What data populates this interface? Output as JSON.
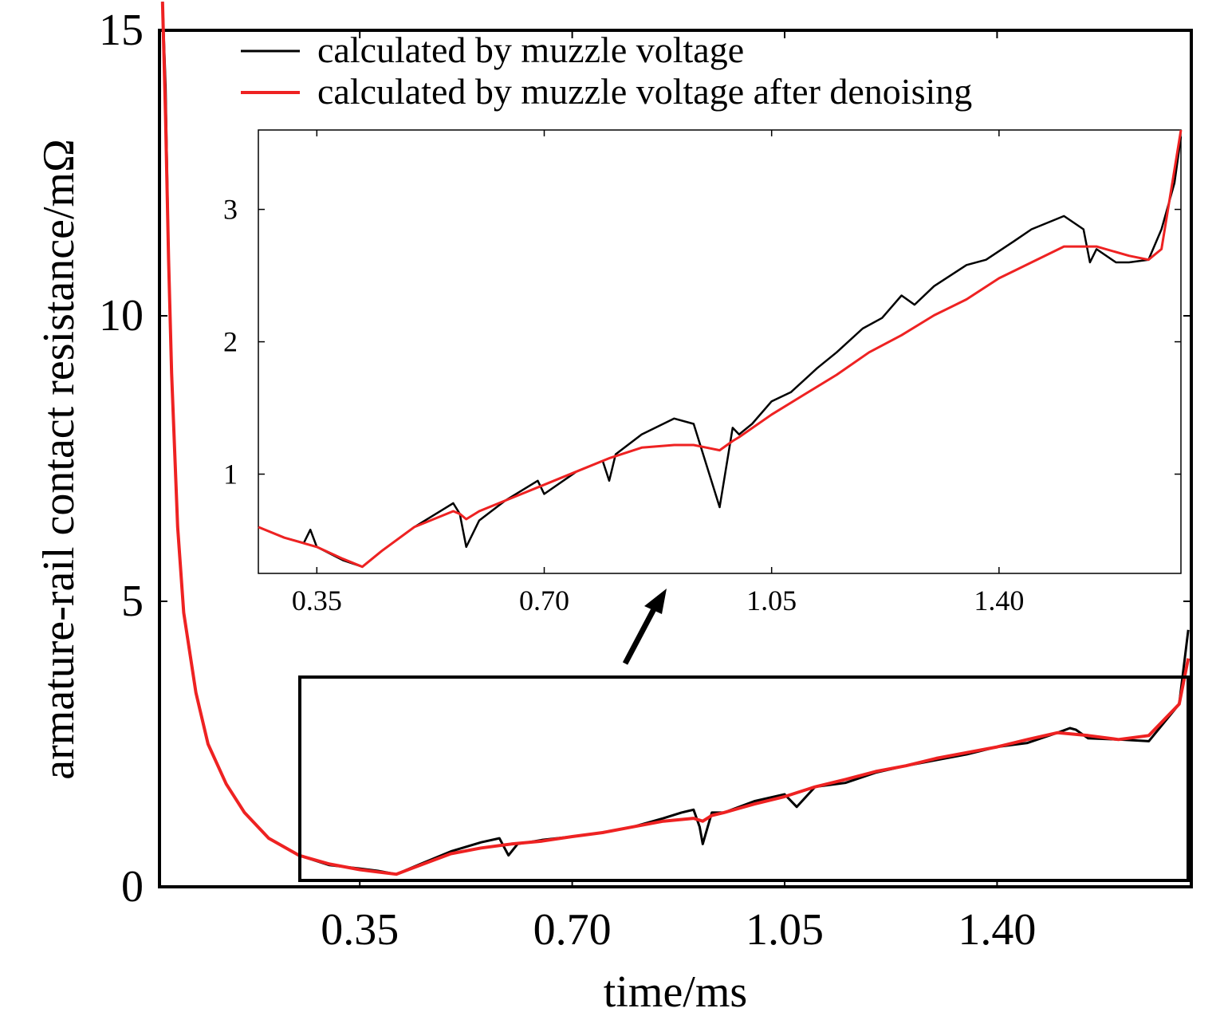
{
  "chart_data": [
    {
      "type": "line",
      "role": "main",
      "title": "",
      "xlabel": "time/ms",
      "ylabel": "armature-rail contact resistance/mΩ",
      "xlim": [
        0.02,
        1.72
      ],
      "ylim": [
        0,
        15
      ],
      "xticks": [
        "0.35",
        "0.70",
        "1.05",
        "1.40"
      ],
      "xtick_values": [
        0.35,
        0.7,
        1.05,
        1.4
      ],
      "yticks": [
        "0",
        "5",
        "10",
        "15"
      ],
      "ytick_values": [
        0,
        5,
        10,
        15
      ],
      "legend_position": "top",
      "series": [
        {
          "name": "calculated by muzzle voltage",
          "color": "#000000",
          "x": [
            0.025,
            0.03,
            0.035,
            0.04,
            0.05,
            0.06,
            0.08,
            0.1,
            0.13,
            0.16,
            0.2,
            0.25,
            0.3,
            0.35,
            0.38,
            0.41,
            0.45,
            0.5,
            0.55,
            0.58,
            0.595,
            0.61,
            0.65,
            0.7,
            0.75,
            0.8,
            0.85,
            0.88,
            0.9,
            0.91,
            0.915,
            0.93,
            0.95,
            1.0,
            1.05,
            1.07,
            1.1,
            1.15,
            1.2,
            1.25,
            1.3,
            1.35,
            1.4,
            1.45,
            1.5,
            1.52,
            1.53,
            1.55,
            1.6,
            1.65,
            1.7,
            1.715
          ],
          "y": [
            15.5,
            14,
            11,
            9,
            6.3,
            4.8,
            3.4,
            2.5,
            1.8,
            1.3,
            0.85,
            0.55,
            0.38,
            0.32,
            0.28,
            0.22,
            0.4,
            0.62,
            0.78,
            0.85,
            0.55,
            0.75,
            0.82,
            0.88,
            0.95,
            1.05,
            1.2,
            1.3,
            1.35,
            1.05,
            0.75,
            1.3,
            1.3,
            1.5,
            1.62,
            1.4,
            1.75,
            1.82,
            2.0,
            2.12,
            2.22,
            2.32,
            2.45,
            2.52,
            2.7,
            2.78,
            2.75,
            2.6,
            2.58,
            2.55,
            3.2,
            4.5
          ]
        },
        {
          "name": "calculated by muzzle voltage after denoising",
          "color": "#ee2222",
          "x": [
            0.025,
            0.03,
            0.035,
            0.04,
            0.05,
            0.06,
            0.08,
            0.1,
            0.13,
            0.16,
            0.2,
            0.25,
            0.3,
            0.35,
            0.38,
            0.41,
            0.45,
            0.5,
            0.55,
            0.6,
            0.65,
            0.7,
            0.75,
            0.8,
            0.85,
            0.9,
            0.915,
            0.93,
            0.95,
            1.0,
            1.05,
            1.1,
            1.15,
            1.2,
            1.25,
            1.3,
            1.35,
            1.4,
            1.45,
            1.5,
            1.55,
            1.6,
            1.65,
            1.7,
            1.715
          ],
          "y": [
            15.5,
            13.5,
            11,
            9,
            6.3,
            4.8,
            3.4,
            2.5,
            1.8,
            1.3,
            0.85,
            0.55,
            0.4,
            0.3,
            0.26,
            0.22,
            0.38,
            0.58,
            0.68,
            0.75,
            0.8,
            0.88,
            0.95,
            1.05,
            1.15,
            1.2,
            1.15,
            1.25,
            1.3,
            1.45,
            1.58,
            1.75,
            1.88,
            2.02,
            2.12,
            2.25,
            2.35,
            2.45,
            2.58,
            2.7,
            2.65,
            2.58,
            2.65,
            3.2,
            4.0
          ]
        }
      ]
    },
    {
      "type": "line",
      "role": "inset (zoom of boxed region)",
      "xlim": [
        0.26,
        1.68
      ],
      "ylim": [
        0.25,
        3.6
      ],
      "xticks": [
        "0.35",
        "0.70",
        "1.05",
        "1.40"
      ],
      "xtick_values": [
        0.35,
        0.7,
        1.05,
        1.4
      ],
      "yticks": [
        "1",
        "2",
        "3"
      ],
      "ytick_values": [
        1,
        2,
        3
      ],
      "series": [
        {
          "name": "calculated by muzzle voltage",
          "color": "#000000",
          "x": [
            0.26,
            0.3,
            0.33,
            0.34,
            0.35,
            0.39,
            0.42,
            0.45,
            0.5,
            0.56,
            0.57,
            0.58,
            0.6,
            0.64,
            0.69,
            0.7,
            0.75,
            0.79,
            0.8,
            0.81,
            0.85,
            0.9,
            0.93,
            0.97,
            0.99,
            1.0,
            1.02,
            1.05,
            1.08,
            1.12,
            1.15,
            1.19,
            1.22,
            1.25,
            1.27,
            1.3,
            1.35,
            1.38,
            1.42,
            1.45,
            1.5,
            1.53,
            1.54,
            1.55,
            1.58,
            1.6,
            1.63,
            1.65,
            1.67,
            1.68
          ],
          "y": [
            0.6,
            0.52,
            0.48,
            0.58,
            0.45,
            0.35,
            0.3,
            0.42,
            0.6,
            0.78,
            0.7,
            0.45,
            0.65,
            0.8,
            0.95,
            0.85,
            1.02,
            1.1,
            0.95,
            1.15,
            1.3,
            1.42,
            1.38,
            0.75,
            1.35,
            1.3,
            1.38,
            1.55,
            1.62,
            1.8,
            1.92,
            2.1,
            2.18,
            2.35,
            2.28,
            2.42,
            2.58,
            2.62,
            2.75,
            2.85,
            2.95,
            2.85,
            2.6,
            2.7,
            2.6,
            2.6,
            2.62,
            2.85,
            3.2,
            3.55
          ]
        },
        {
          "name": "calculated by muzzle voltage after denoising",
          "color": "#ee2222",
          "x": [
            0.26,
            0.3,
            0.35,
            0.39,
            0.42,
            0.45,
            0.5,
            0.56,
            0.57,
            0.58,
            0.6,
            0.65,
            0.7,
            0.75,
            0.8,
            0.85,
            0.9,
            0.93,
            0.95,
            0.97,
            0.99,
            1.0,
            1.05,
            1.1,
            1.15,
            1.2,
            1.25,
            1.3,
            1.35,
            1.4,
            1.45,
            1.5,
            1.55,
            1.6,
            1.63,
            1.65,
            1.68
          ],
          "y": [
            0.6,
            0.52,
            0.45,
            0.36,
            0.3,
            0.42,
            0.6,
            0.72,
            0.7,
            0.66,
            0.72,
            0.82,
            0.92,
            1.02,
            1.12,
            1.2,
            1.22,
            1.22,
            1.2,
            1.18,
            1.25,
            1.28,
            1.45,
            1.6,
            1.75,
            1.92,
            2.05,
            2.2,
            2.32,
            2.48,
            2.6,
            2.72,
            2.72,
            2.65,
            2.62,
            2.7,
            3.6
          ]
        }
      ]
    }
  ]
}
